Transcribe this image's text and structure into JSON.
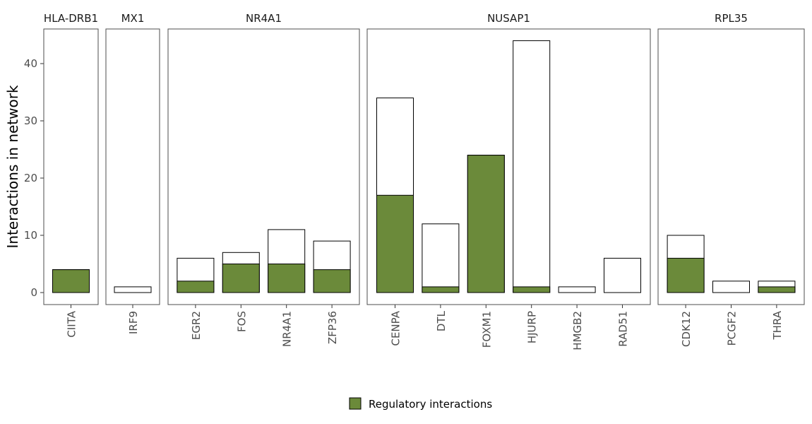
{
  "chart_data": {
    "type": "bar",
    "ylabel": "Interactions in network",
    "xlabel": "",
    "ylim": [
      -2,
      46
    ],
    "yticks": [
      0,
      10,
      20,
      30,
      40
    ],
    "fill_color": "#6b8a3a",
    "total_bar_color": "#ffffff",
    "legend": {
      "label": "Regulatory interactions",
      "position": "bottom"
    },
    "facets": [
      {
        "title": "HLA-DRB1",
        "categories": [
          "CIITA"
        ],
        "total": [
          4
        ],
        "regulatory": [
          4
        ]
      },
      {
        "title": "MX1",
        "categories": [
          "IRF9"
        ],
        "total": [
          1
        ],
        "regulatory": [
          0
        ]
      },
      {
        "title": "NR4A1",
        "categories": [
          "EGR2",
          "FOS",
          "NR4A1",
          "ZFP36"
        ],
        "total": [
          6,
          7,
          11,
          9
        ],
        "regulatory": [
          2,
          5,
          5,
          4
        ]
      },
      {
        "title": "NUSAP1",
        "categories": [
          "CENPA",
          "DTL",
          "FOXM1",
          "HJURP",
          "HMGB2",
          "RAD51"
        ],
        "total": [
          34,
          12,
          24,
          44,
          1,
          6
        ],
        "regulatory": [
          17,
          1,
          24,
          1,
          0,
          0
        ]
      },
      {
        "title": "RPL35",
        "categories": [
          "CDK12",
          "PCGF2",
          "THRA"
        ],
        "total": [
          10,
          2,
          2
        ],
        "regulatory": [
          6,
          0,
          1
        ]
      }
    ]
  }
}
